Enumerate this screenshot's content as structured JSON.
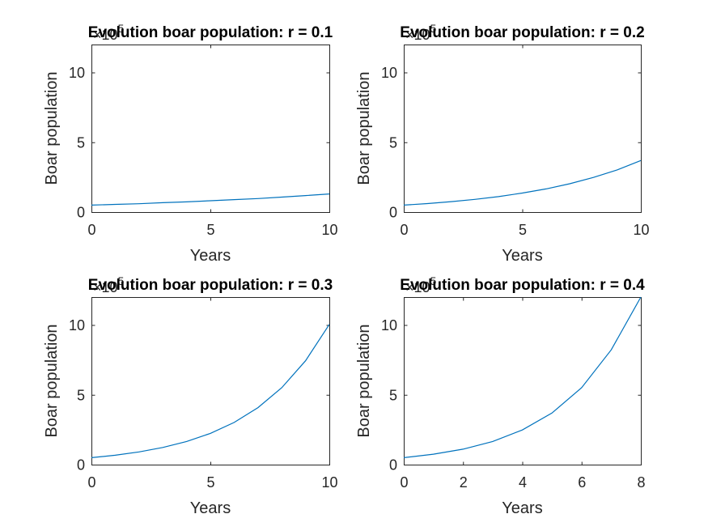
{
  "chart_data": [
    {
      "type": "line",
      "title": "Evolution boar population: r = 0.1",
      "xlabel": "Years",
      "ylabel": "Boar population",
      "y_exponent_base": "×10",
      "y_exponent": "5",
      "xlim": [
        0,
        10
      ],
      "ylim": [
        0,
        12
      ],
      "xticks": [
        "0",
        "5",
        "10"
      ],
      "yticks": [
        "0",
        "5",
        "10"
      ],
      "x": [
        0,
        1,
        2,
        3,
        4,
        5,
        6,
        7,
        8,
        9,
        10
      ],
      "y": [
        0.5,
        0.55,
        0.6,
        0.67,
        0.73,
        0.81,
        0.89,
        0.97,
        1.07,
        1.18,
        1.3
      ]
    },
    {
      "type": "line",
      "title": "Evolution boar population: r = 0.2",
      "xlabel": "Years",
      "ylabel": "Boar population",
      "y_exponent_base": "×10",
      "y_exponent": "5",
      "xlim": [
        0,
        10
      ],
      "ylim": [
        0,
        12
      ],
      "xticks": [
        "0",
        "5",
        "10"
      ],
      "yticks": [
        "0",
        "5",
        "10"
      ],
      "x": [
        0,
        1,
        2,
        3,
        4,
        5,
        6,
        7,
        8,
        9,
        10
      ],
      "y": [
        0.5,
        0.61,
        0.75,
        0.91,
        1.11,
        1.36,
        1.66,
        2.03,
        2.48,
        3.02,
        3.69
      ]
    },
    {
      "type": "line",
      "title": "Evolution boar population: r = 0.3",
      "xlabel": "Years",
      "ylabel": "Boar population",
      "y_exponent_base": "×10",
      "y_exponent": "5",
      "xlim": [
        0,
        10
      ],
      "ylim": [
        0,
        12
      ],
      "xticks": [
        "0",
        "5",
        "10"
      ],
      "yticks": [
        "0",
        "5",
        "10"
      ],
      "x": [
        0,
        1,
        2,
        3,
        4,
        5,
        6,
        7,
        8,
        9,
        10
      ],
      "y": [
        0.5,
        0.67,
        0.91,
        1.23,
        1.66,
        2.24,
        3.02,
        4.08,
        5.51,
        7.44,
        10.04
      ]
    },
    {
      "type": "line",
      "title": "Evolution boar population: r = 0.4",
      "xlabel": "Years",
      "ylabel": "Boar population",
      "y_exponent_base": "×10",
      "y_exponent": "5",
      "xlim": [
        0,
        8
      ],
      "ylim": [
        0,
        12
      ],
      "xticks": [
        "0",
        "2",
        "4",
        "6",
        "8"
      ],
      "yticks": [
        "0",
        "5",
        "10"
      ],
      "x": [
        0,
        1,
        2,
        3,
        4,
        5,
        6,
        7,
        8
      ],
      "y": [
        0.5,
        0.75,
        1.11,
        1.66,
        2.48,
        3.69,
        5.51,
        8.22,
        12.0
      ]
    }
  ]
}
